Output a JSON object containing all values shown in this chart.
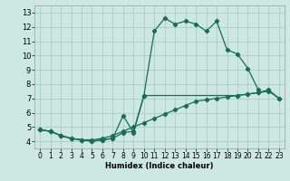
{
  "xlabel": "Humidex (Indice chaleur)",
  "xlim": [
    -0.5,
    23.5
  ],
  "ylim": [
    3.5,
    13.5
  ],
  "yticks": [
    4,
    5,
    6,
    7,
    8,
    9,
    10,
    11,
    12,
    13
  ],
  "xticks": [
    0,
    1,
    2,
    3,
    4,
    5,
    6,
    7,
    8,
    9,
    10,
    11,
    12,
    13,
    14,
    15,
    16,
    17,
    18,
    19,
    20,
    21,
    22,
    23
  ],
  "background_color": "#cce8e0",
  "grid_color": "#aacccc",
  "line_color": "#1a6b5a",
  "line1_x": [
    0,
    1,
    2,
    3,
    4,
    5,
    6,
    7,
    8,
    9,
    10,
    11,
    12,
    13,
    14,
    15,
    16,
    17,
    18,
    19,
    20,
    21
  ],
  "line1_y": [
    4.8,
    4.7,
    4.4,
    4.2,
    4.1,
    4.0,
    4.1,
    4.2,
    5.8,
    4.6,
    7.2,
    11.7,
    12.6,
    12.2,
    12.4,
    12.2,
    11.7,
    12.4,
    10.4,
    10.1,
    9.1,
    7.6
  ],
  "line2_x": [
    0,
    1,
    2,
    3,
    4,
    5,
    6,
    7,
    8,
    9,
    10,
    19,
    20,
    21,
    22,
    23
  ],
  "line2_y": [
    4.8,
    4.7,
    4.4,
    4.2,
    4.1,
    4.0,
    4.1,
    4.2,
    4.6,
    4.7,
    7.2,
    7.2,
    7.3,
    7.4,
    7.6,
    7.0
  ],
  "line3_x": [
    0,
    1,
    2,
    3,
    4,
    5,
    6,
    7,
    8,
    9,
    10,
    11,
    12,
    13,
    14,
    15,
    16,
    17,
    18,
    19,
    20,
    21,
    22,
    23
  ],
  "line3_y": [
    4.8,
    4.7,
    4.4,
    4.2,
    4.1,
    4.1,
    4.2,
    4.4,
    4.7,
    5.0,
    5.3,
    5.6,
    5.9,
    6.2,
    6.5,
    6.8,
    6.9,
    7.0,
    7.1,
    7.2,
    7.3,
    7.4,
    7.5,
    7.0
  ]
}
